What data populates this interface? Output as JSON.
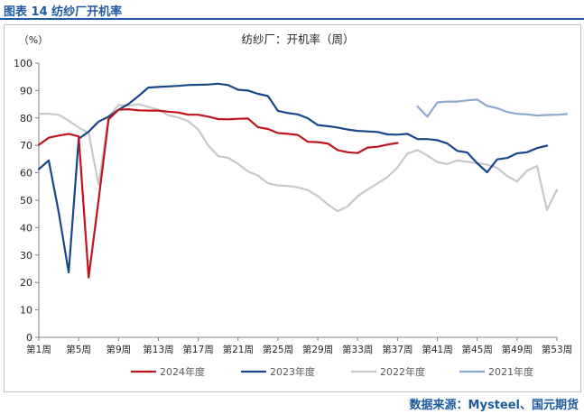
{
  "figure_label": "图表 14  纺纱厂开机率",
  "source": "数据来源：Mysteel、国元期货",
  "colors": {
    "brand": "#1d5a9e",
    "s2024": "#c0141d",
    "s2023": "#17468a",
    "s2022": "#c8c8c8",
    "s2021": "#8ea9d1",
    "axis": "#7f7f7f"
  },
  "chart_data": {
    "type": "line",
    "title": "纺纱厂：开机率（周）",
    "ylabel": "（%）",
    "ylim": [
      0,
      100
    ],
    "yticks": [
      0,
      10,
      20,
      30,
      40,
      50,
      60,
      70,
      80,
      90,
      100
    ],
    "xlim": [
      1,
      53
    ],
    "xticks": [
      {
        "week": 1,
        "label": "第1周"
      },
      {
        "week": 5,
        "label": "第5周"
      },
      {
        "week": 9,
        "label": "第9周"
      },
      {
        "week": 13,
        "label": "第13周"
      },
      {
        "week": 17,
        "label": "第17周"
      },
      {
        "week": 21,
        "label": "第21周"
      },
      {
        "week": 25,
        "label": "第25周"
      },
      {
        "week": 29,
        "label": "第29周"
      },
      {
        "week": 33,
        "label": "第33周"
      },
      {
        "week": 37,
        "label": "第37周"
      },
      {
        "week": 41,
        "label": "第41周"
      },
      {
        "week": 45,
        "label": "第45周"
      },
      {
        "week": 49,
        "label": "第49周"
      },
      {
        "week": 53,
        "label": "第53周"
      }
    ],
    "grid": false,
    "legend_position": "bottom",
    "series": [
      {
        "name": "2024年度",
        "color_key": "s2024",
        "points": [
          [
            1,
            70.2
          ],
          [
            2,
            72.8
          ],
          [
            3,
            73.6
          ],
          [
            4,
            74.2
          ],
          [
            5,
            73.3
          ],
          [
            6,
            21.8
          ],
          [
            7,
            50
          ],
          [
            8,
            79.5
          ],
          [
            9,
            83
          ],
          [
            10,
            83.2
          ],
          [
            11,
            82.8
          ],
          [
            12,
            82.7
          ],
          [
            13,
            82.7
          ],
          [
            14,
            82.3
          ],
          [
            15,
            82
          ],
          [
            16,
            81.2
          ],
          [
            17,
            81.2
          ],
          [
            18,
            80.5
          ],
          [
            19,
            79.6
          ],
          [
            20,
            79.5
          ],
          [
            21,
            79.7
          ],
          [
            22,
            79.8
          ],
          [
            23,
            76.6
          ],
          [
            24,
            76
          ],
          [
            25,
            74.5
          ],
          [
            26,
            74.2
          ],
          [
            27,
            73.8
          ],
          [
            28,
            71.3
          ],
          [
            29,
            71.2
          ],
          [
            30,
            70.7
          ],
          [
            31,
            68.3
          ],
          [
            32,
            67.5
          ],
          [
            33,
            67.2
          ],
          [
            34,
            69.2
          ],
          [
            35,
            69.5
          ],
          [
            36,
            70.3
          ],
          [
            37,
            70.9
          ]
        ]
      },
      {
        "name": "2023年度",
        "color_key": "s2023",
        "points": [
          [
            1,
            61.3
          ],
          [
            2,
            64.5
          ],
          [
            3,
            45.5
          ],
          [
            4,
            23.7
          ],
          [
            5,
            72.4
          ],
          [
            6,
            75
          ],
          [
            7,
            78.7
          ],
          [
            8,
            80.5
          ],
          [
            9,
            83
          ],
          [
            10,
            85.1
          ],
          [
            11,
            88
          ],
          [
            12,
            91.1
          ],
          [
            13,
            91.3
          ],
          [
            14,
            91.5
          ],
          [
            15,
            91.7
          ],
          [
            16,
            92
          ],
          [
            17,
            92.1
          ],
          [
            18,
            92.2
          ],
          [
            19,
            92.5
          ],
          [
            20,
            92
          ],
          [
            21,
            90.3
          ],
          [
            22,
            90
          ],
          [
            23,
            88.8
          ],
          [
            24,
            88
          ],
          [
            25,
            82.6
          ],
          [
            26,
            81.8
          ],
          [
            27,
            81.3
          ],
          [
            28,
            79.9
          ],
          [
            29,
            77.4
          ],
          [
            30,
            77
          ],
          [
            31,
            76.5
          ],
          [
            32,
            75.8
          ],
          [
            33,
            75.3
          ],
          [
            34,
            75.1
          ],
          [
            35,
            74.9
          ],
          [
            36,
            74
          ],
          [
            37,
            73.9
          ],
          [
            38,
            74.2
          ],
          [
            39,
            72.3
          ],
          [
            40,
            72.3
          ],
          [
            41,
            71.9
          ],
          [
            42,
            70.7
          ],
          [
            43,
            68
          ],
          [
            44,
            67.4
          ],
          [
            45,
            63.5
          ],
          [
            46,
            60.2
          ],
          [
            47,
            64.9
          ],
          [
            48,
            65.4
          ],
          [
            49,
            67.1
          ],
          [
            50,
            67.5
          ],
          [
            51,
            69
          ],
          [
            52,
            69.9
          ]
        ]
      },
      {
        "name": "2022年度",
        "color_key": "s2022",
        "points": [
          [
            1,
            81.5
          ],
          [
            2,
            81.5
          ],
          [
            3,
            81.2
          ],
          [
            4,
            79
          ],
          [
            5,
            76.5
          ],
          [
            6,
            74.5
          ],
          [
            7,
            55.8
          ],
          [
            8,
            80.5
          ],
          [
            9,
            84.7
          ],
          [
            10,
            84.5
          ],
          [
            11,
            85
          ],
          [
            12,
            84
          ],
          [
            13,
            83
          ],
          [
            14,
            81
          ],
          [
            15,
            80.2
          ],
          [
            16,
            78.8
          ],
          [
            17,
            75.8
          ],
          [
            18,
            70
          ],
          [
            19,
            66.1
          ],
          [
            20,
            65.5
          ],
          [
            21,
            63.3
          ],
          [
            22,
            60.5
          ],
          [
            23,
            59
          ],
          [
            24,
            56.2
          ],
          [
            25,
            55.4
          ],
          [
            26,
            55.2
          ],
          [
            27,
            54.7
          ],
          [
            28,
            53.7
          ],
          [
            29,
            51.5
          ],
          [
            30,
            48.5
          ],
          [
            31,
            46
          ],
          [
            32,
            47.8
          ],
          [
            33,
            51.4
          ],
          [
            34,
            53.9
          ],
          [
            35,
            56.1
          ],
          [
            36,
            58.5
          ],
          [
            37,
            62
          ],
          [
            38,
            67
          ],
          [
            39,
            68.3
          ],
          [
            40,
            66.3
          ],
          [
            41,
            63.9
          ],
          [
            42,
            63.2
          ],
          [
            43,
            64.5
          ],
          [
            44,
            64
          ],
          [
            45,
            63.5
          ],
          [
            46,
            63
          ],
          [
            47,
            61.8
          ],
          [
            48,
            58.8
          ],
          [
            49,
            56.8
          ],
          [
            50,
            60.8
          ],
          [
            51,
            62.5
          ],
          [
            52,
            46.5
          ],
          [
            53,
            53.8
          ]
        ]
      },
      {
        "name": "2021年度",
        "color_key": "s2021",
        "points": [
          [
            39,
            84.2
          ],
          [
            40,
            80.5
          ],
          [
            41,
            85.7
          ],
          [
            42,
            86
          ],
          [
            43,
            86
          ],
          [
            44,
            86.4
          ],
          [
            45,
            86.7
          ],
          [
            46,
            84.4
          ],
          [
            47,
            83.6
          ],
          [
            48,
            82.2
          ],
          [
            49,
            81.5
          ],
          [
            50,
            81.3
          ],
          [
            51,
            80.9
          ],
          [
            52,
            81.1
          ],
          [
            53,
            81.2
          ],
          [
            54,
            81.4
          ]
        ]
      }
    ]
  }
}
